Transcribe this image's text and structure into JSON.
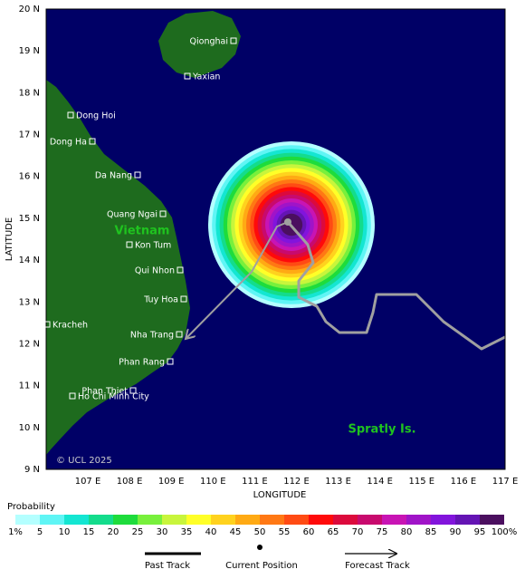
{
  "map": {
    "y_ticks": [
      "20 N",
      "19 N",
      "18 N",
      "17 N",
      "16 N",
      "15 N",
      "14 N",
      "13 N",
      "12 N",
      "11 N",
      "10 N",
      "9 N"
    ],
    "x_ticks": [
      "107 E",
      "108 E",
      "109 E",
      "110 E",
      "111 E",
      "112 E",
      "113 E",
      "114 E",
      "115 E",
      "116 E",
      "117 E"
    ],
    "y_label": "LATITUDE",
    "x_label": "LONGITUDE",
    "places": [
      "Qionghai",
      "Yaxian",
      "Dong Hoi",
      "Dong Ha",
      "Da Nang",
      "Quang Ngai",
      "Kon Tum",
      "Qui Nhon",
      "Tuy Hoa",
      "Kracheh",
      "Nha Trang",
      "Phan Rang",
      "Phan Thiet",
      "Ho Chi Minh City"
    ],
    "regions": [
      "Vietnam",
      "Spratly Is."
    ],
    "copyright": "© UCL 2025",
    "sea_color": "#000066",
    "land_color": "#1e6b1e",
    "track_color": "#a0a0a0"
  },
  "probability_legend": {
    "title": "Probability",
    "labels": [
      "1%",
      "5",
      "10",
      "15",
      "20",
      "25",
      "30",
      "35",
      "40",
      "45",
      "50",
      "55",
      "60",
      "65",
      "70",
      "75",
      "80",
      "85",
      "90",
      "95",
      "100%"
    ],
    "colors": [
      "#b4ffff",
      "#5ff5f5",
      "#14e6d2",
      "#14dc8c",
      "#1edc3c",
      "#78f03c",
      "#c8f53c",
      "#ffff28",
      "#ffd21e",
      "#ffaa14",
      "#ff7814",
      "#ff4b14",
      "#ff0a0a",
      "#dc0a3c",
      "#c80a6e",
      "#c814b4",
      "#a014c8",
      "#8214dc",
      "#6414b4",
      "#4b0f5f"
    ]
  },
  "track_legend": [
    "Past Track",
    "Current Position",
    "Forecast Track"
  ]
}
